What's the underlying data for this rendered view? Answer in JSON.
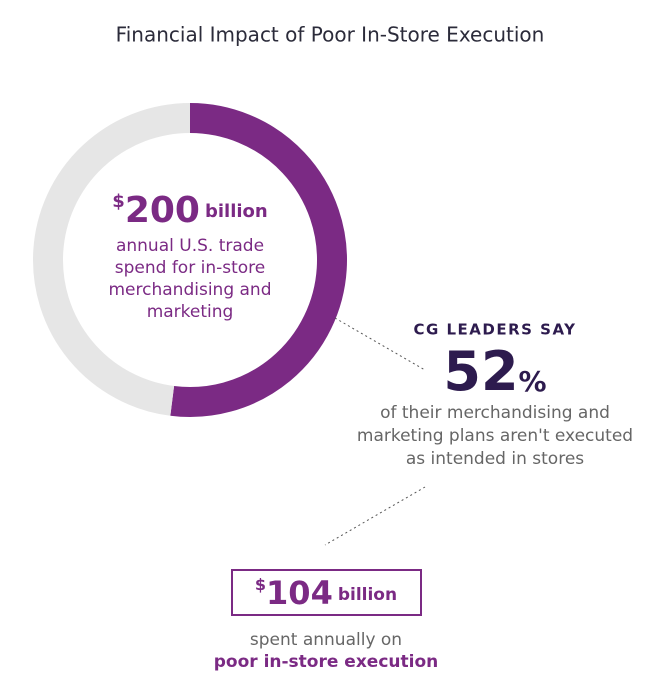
{
  "chart_data": {
    "type": "donut",
    "title": "Financial Impact of Poor In-Store Execution",
    "values": [
      52,
      48
    ],
    "colors": [
      "#7b2a84",
      "#e6e6e6"
    ],
    "center_label": {
      "currency": "$",
      "amount": "200",
      "unit": "billion",
      "lines": [
        "annual U.S. trade",
        "spend for in-store",
        "merchandising and",
        "marketing"
      ]
    },
    "callout": {
      "heading": "CG LEADERS SAY",
      "value_unit": "%",
      "lines": [
        "of their merchandising and",
        "marketing plans aren't executed",
        "as intended in stores"
      ]
    },
    "result": {
      "currency": "$",
      "amount": "104",
      "unit": "billion",
      "lines": [
        "spent annually on",
        "poor in-store execution"
      ]
    }
  }
}
